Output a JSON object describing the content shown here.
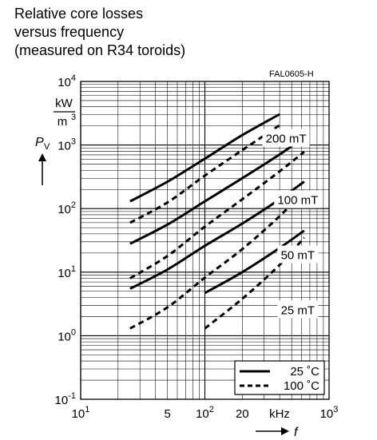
{
  "title_lines": [
    "Relative core losses",
    "versus frequency",
    "(measured on R34 toroids)"
  ],
  "figure_code": "FAL0605-H",
  "chart_data": {
    "type": "line",
    "title": "Relative core losses versus frequency (measured on R34 toroids)",
    "xscale": "log",
    "yscale": "log",
    "xlim": [
      10,
      1000
    ],
    "ylim": [
      0.1,
      10000
    ],
    "xunit": "kHz",
    "xlabel_symbol": "f",
    "ylabel_symbol": "P",
    "ylabel_subscript": "V",
    "yunit_numerator": "kW",
    "yunit_denominator": "m",
    "yunit_denominator_exp": "3",
    "x_ticks": [
      {
        "value": 10,
        "base": "10",
        "exp": "1"
      },
      {
        "value": 50,
        "base": "5",
        "exp": ""
      },
      {
        "value": 100,
        "base": "10",
        "exp": "2"
      },
      {
        "value": 200,
        "base": "20",
        "exp": ""
      },
      {
        "value": 1000,
        "base": "10",
        "exp": "3"
      }
    ],
    "y_ticks": [
      {
        "value": 0.1,
        "base": "10",
        "exp": "-1"
      },
      {
        "value": 1,
        "base": "10",
        "exp": "0"
      },
      {
        "value": 10,
        "base": "10",
        "exp": "1"
      },
      {
        "value": 100,
        "base": "10",
        "exp": "2"
      },
      {
        "value": 1000,
        "base": "10",
        "exp": "3"
      },
      {
        "value": 10000,
        "base": "10",
        "exp": "4"
      }
    ],
    "grid": true,
    "legend_position": "bottom-right",
    "legend": [
      {
        "label": "25 ˚C",
        "style": "solid"
      },
      {
        "label": "100 ˚C",
        "style": "dashed"
      }
    ],
    "curve_labels": [
      {
        "label": "200 mT",
        "at": [
          450,
          1300
        ]
      },
      {
        "label": "100 mT",
        "at": [
          560,
          140
        ]
      },
      {
        "label": "50 mT",
        "at": [
          560,
          19
        ]
      },
      {
        "label": "25 mT",
        "at": [
          560,
          2.6
        ]
      }
    ],
    "series": [
      {
        "flux": "200 mT",
        "temp": "25 ˚C",
        "style": "solid",
        "x": [
          25,
          50,
          100,
          200,
          400
        ],
        "y": [
          130,
          265,
          610,
          1430,
          3050
        ]
      },
      {
        "flux": "200 mT",
        "temp": "100 ˚C",
        "style": "dashed",
        "x": [
          25,
          50,
          100,
          200,
          400
        ],
        "y": [
          60,
          125,
          330,
          830,
          2050
        ]
      },
      {
        "flux": "100 mT",
        "temp": "25 ˚C",
        "style": "solid",
        "x": [
          25,
          50,
          100,
          200,
          400,
          630
        ],
        "y": [
          28,
          56,
          130,
          300,
          710,
          1330
        ]
      },
      {
        "flux": "100 mT",
        "temp": "100 ˚C",
        "style": "dashed",
        "x": [
          25,
          50,
          100,
          200,
          400,
          630
        ],
        "y": [
          8,
          18,
          52,
          140,
          385,
          780
        ]
      },
      {
        "flux": "50 mT",
        "temp": "25 ˚C",
        "style": "solid",
        "x": [
          25,
          50,
          100,
          200,
          400,
          630
        ],
        "y": [
          5.5,
          11,
          26,
          58,
          140,
          265
        ]
      },
      {
        "flux": "50 mT",
        "temp": "100 ˚C",
        "style": "dashed",
        "x": [
          25,
          50,
          100,
          200,
          400,
          630
        ],
        "y": [
          1.3,
          2.8,
          8.2,
          23,
          76,
          190
        ]
      },
      {
        "flux": "25 mT",
        "temp": "25 ˚C",
        "style": "solid",
        "x": [
          100,
          200,
          400,
          630
        ],
        "y": [
          4.7,
          10,
          24,
          45
        ]
      },
      {
        "flux": "25 mT",
        "temp": "100 ˚C",
        "style": "dashed",
        "x": [
          100,
          200,
          400,
          630
        ],
        "y": [
          1.3,
          3.8,
          13,
          35
        ]
      }
    ]
  }
}
